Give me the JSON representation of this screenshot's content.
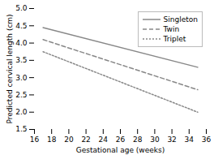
{
  "chart_data": {
    "type": "line",
    "x": [
      17,
      35
    ],
    "series": [
      {
        "name": "Singleton",
        "color": "#888888",
        "line_style": "solid",
        "values": [
          4.45,
          3.3
        ]
      },
      {
        "name": "Twin",
        "color": "#888888",
        "line_style": "dashed",
        "values": [
          4.1,
          2.65
        ]
      },
      {
        "name": "Triplet",
        "color": "#888888",
        "line_style": "dotted",
        "values": [
          3.75,
          2.0
        ]
      }
    ],
    "xlabel": "Gestational age (weeks)",
    "ylabel": "Predicted cervical length (cm)",
    "xlim": [
      16,
      36
    ],
    "ylim": [
      1.5,
      5.0
    ],
    "xticks": [
      16,
      18,
      20,
      22,
      24,
      26,
      28,
      30,
      32,
      34,
      36
    ],
    "yticks": [
      1.5,
      {
        "value": 2,
        "label": "2.0"
      },
      2.5,
      {
        "value": 3,
        "label": "3.0"
      },
      3.5,
      {
        "value": 4,
        "label": "4.0"
      },
      4.5,
      {
        "value": 5,
        "label": "5.0"
      }
    ],
    "legend": "upper right"
  }
}
